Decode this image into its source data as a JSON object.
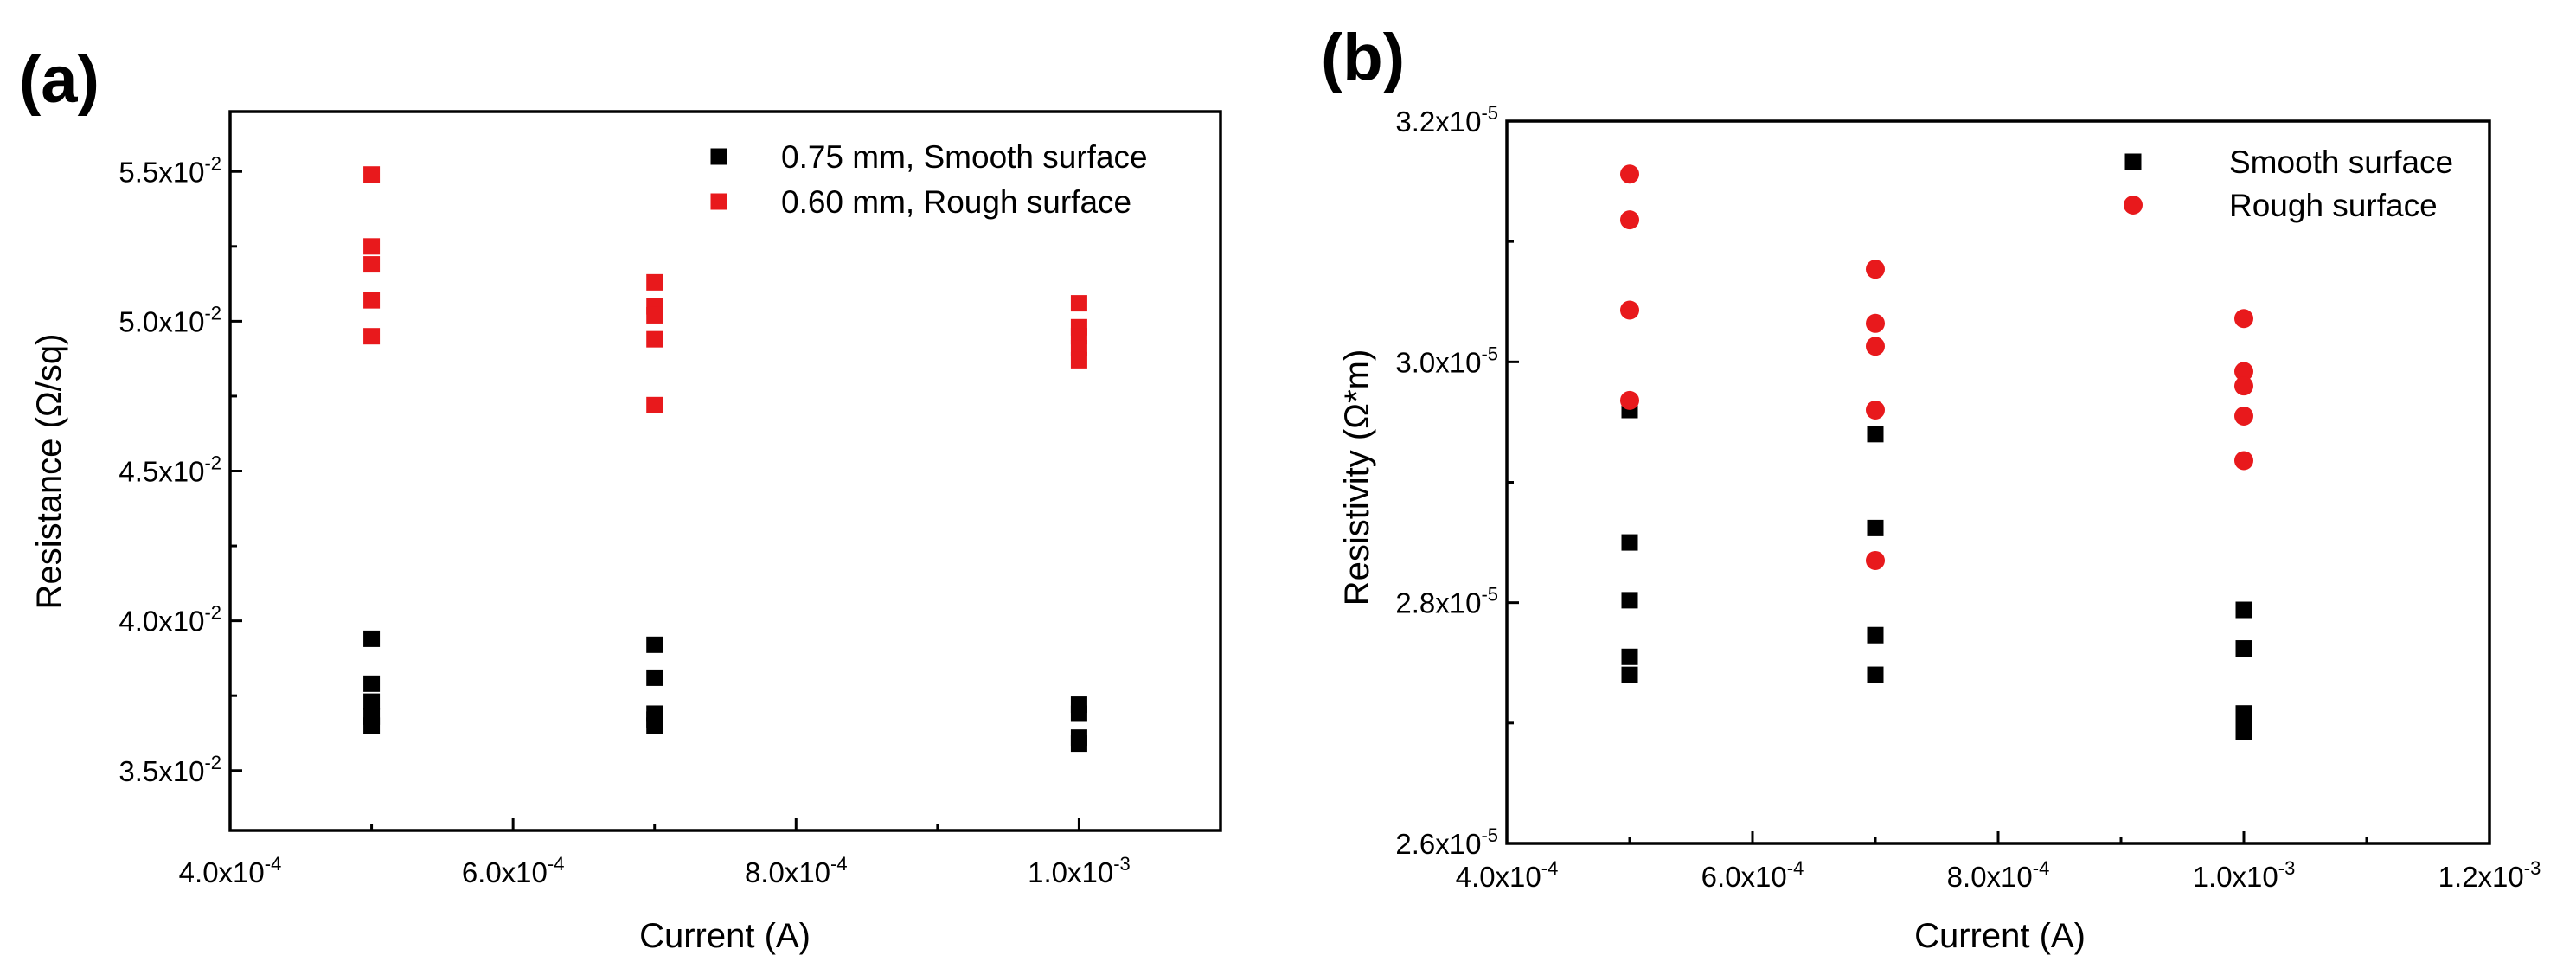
{
  "chart_data": [
    {
      "id": "a",
      "type": "scatter",
      "panel_label": "(a)",
      "xlabel": "Current (A)",
      "ylabel": "Resistance (Ω/sq)",
      "xlim": [
        0.0004,
        0.0011
      ],
      "ylim": [
        0.033,
        0.057
      ],
      "x_ticks": [
        0.0004,
        0.0006,
        0.0008,
        0.001
      ],
      "x_minor_ticks": [
        0.0005,
        0.0007,
        0.0009,
        0.0011
      ],
      "x_tick_labels": [
        {
          "mant": "4.0x10",
          "exp": "-4"
        },
        {
          "mant": "6.0x10",
          "exp": "-4"
        },
        {
          "mant": "8.0x10",
          "exp": "-4"
        },
        {
          "mant": "1.0x10",
          "exp": "-3"
        }
      ],
      "y_ticks": [
        0.035,
        0.04,
        0.045,
        0.05,
        0.055
      ],
      "y_minor_ticks": [
        0.0375,
        0.0425,
        0.0475,
        0.0525
      ],
      "y_tick_labels": [
        {
          "mant": "3.5x10",
          "exp": "-2"
        },
        {
          "mant": "4.0x10",
          "exp": "-2"
        },
        {
          "mant": "4.5x10",
          "exp": "-2"
        },
        {
          "mant": "5.0x10",
          "exp": "-2"
        },
        {
          "mant": "5.5x10",
          "exp": "-2"
        }
      ],
      "legend_position": "top-right",
      "series": [
        {
          "name": "0.75 mm, Smooth surface",
          "color": "#000000",
          "marker": "square",
          "x": [
            0.0005,
            0.0005,
            0.0005,
            0.0005,
            0.0005,
            0.0007,
            0.0007,
            0.0007,
            0.0007,
            0.0007,
            0.001,
            0.001,
            0.001,
            0.001
          ],
          "y": [
            0.0394,
            0.0379,
            0.0373,
            0.0368,
            0.0365,
            0.0392,
            0.0381,
            0.0369,
            0.0367,
            0.0365,
            0.0372,
            0.0369,
            0.0361,
            0.0359
          ]
        },
        {
          "name": "0.60 mm, Rough surface",
          "color": "#e8191c",
          "marker": "square",
          "x": [
            0.0005,
            0.0005,
            0.0005,
            0.0005,
            0.0005,
            0.0007,
            0.0007,
            0.0007,
            0.0007,
            0.0007,
            0.001,
            0.001,
            0.001,
            0.001,
            0.001
          ],
          "y": [
            0.0549,
            0.0525,
            0.0519,
            0.0507,
            0.0495,
            0.0513,
            0.0505,
            0.0502,
            0.0494,
            0.0472,
            0.0506,
            0.0498,
            0.0495,
            0.0491,
            0.0487
          ]
        }
      ]
    },
    {
      "id": "b",
      "type": "scatter",
      "panel_label": "(b)",
      "xlabel": "Current (A)",
      "ylabel": "Resistivity (Ω*m)",
      "xlim": [
        0.0004,
        0.0012
      ],
      "ylim": [
        2.6e-05,
        3.2e-05
      ],
      "x_ticks": [
        0.0004,
        0.0006,
        0.0008,
        0.001,
        0.0012
      ],
      "x_minor_ticks": [
        0.0005,
        0.0007,
        0.0009,
        0.0011
      ],
      "x_tick_labels": [
        {
          "mant": "4.0x10",
          "exp": "-4"
        },
        {
          "mant": "6.0x10",
          "exp": "-4"
        },
        {
          "mant": "8.0x10",
          "exp": "-4"
        },
        {
          "mant": "1.0x10",
          "exp": "-3"
        },
        {
          "mant": "1.2x10",
          "exp": "-3"
        }
      ],
      "y_ticks": [
        2.6e-05,
        2.8e-05,
        3e-05,
        3.2e-05
      ],
      "y_minor_ticks": [
        2.7e-05,
        2.9e-05,
        3.1e-05
      ],
      "y_tick_labels": [
        {
          "mant": "2.6x10",
          "exp": "-5"
        },
        {
          "mant": "2.8x10",
          "exp": "-5"
        },
        {
          "mant": "3.0x10",
          "exp": "-5"
        },
        {
          "mant": "3.2x10",
          "exp": "-5"
        }
      ],
      "legend_position": "top-right",
      "series": [
        {
          "name": "Smooth surface",
          "color": "#000000",
          "marker": "square",
          "x": [
            0.0005,
            0.0005,
            0.0005,
            0.0005,
            0.0005,
            0.0007,
            0.0007,
            0.0007,
            0.0007,
            0.0007,
            0.001,
            0.001,
            0.001,
            0.001,
            0.001
          ],
          "y": [
            2.96e-05,
            2.85e-05,
            2.802e-05,
            2.755e-05,
            2.74e-05,
            2.94e-05,
            2.862e-05,
            2.773e-05,
            2.74e-05,
            2.74e-05,
            2.794e-05,
            2.762e-05,
            2.708e-05,
            2.7e-05,
            2.693e-05
          ]
        },
        {
          "name": "Rough surface",
          "color": "#e8191c",
          "marker": "circle",
          "x": [
            0.0005,
            0.0005,
            0.0005,
            0.0005,
            0.0007,
            0.0007,
            0.0007,
            0.0007,
            0.0007,
            0.001,
            0.001,
            0.001,
            0.001,
            0.001
          ],
          "y": [
            3.156e-05,
            3.118e-05,
            3.043e-05,
            2.968e-05,
            3.077e-05,
            3.032e-05,
            3.013e-05,
            2.96e-05,
            2.835e-05,
            3.036e-05,
            2.992e-05,
            2.98e-05,
            2.955e-05,
            2.918e-05
          ]
        }
      ]
    }
  ]
}
